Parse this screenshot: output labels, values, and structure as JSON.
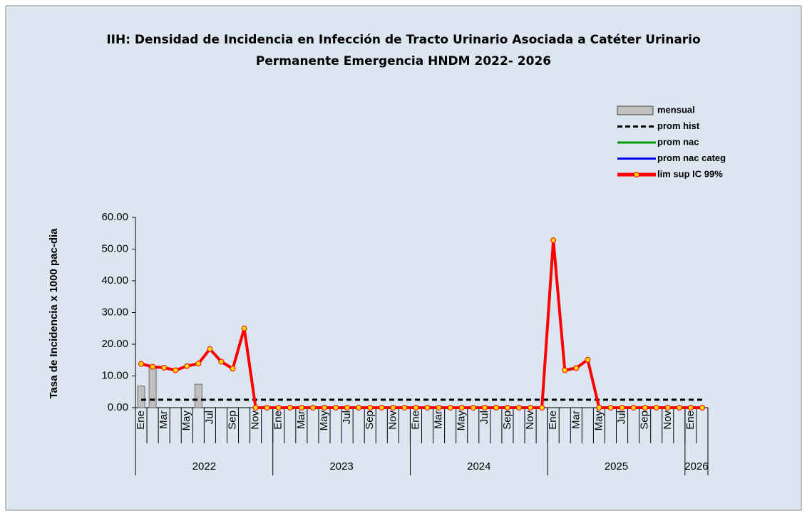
{
  "chart_data": {
    "type": "bar-line",
    "title": [
      "IIH: Densidad de Incidencia en  Infección de Tracto Urinario Asociada a Catéter Urinario",
      "Permanente Emergencia HNDM 2022- 2026"
    ],
    "y_label": "Tasa de Incidencia x 1000 pac-dia",
    "categories": [
      "Ene",
      null,
      "Mar",
      null,
      "May",
      null,
      "Jul",
      null,
      "Sep",
      null,
      "Nov",
      null,
      "Ene",
      null,
      "Mar",
      null,
      "May",
      null,
      "Jul",
      null,
      "Sep",
      null,
      "Nov",
      null,
      "Ene",
      null,
      "Mar",
      null,
      "May",
      null,
      "Jul",
      null,
      "Sep",
      null,
      "Nov",
      null,
      "Ene",
      null,
      "Mar",
      null,
      "May",
      null,
      "Jul",
      null,
      "Sep",
      null,
      "Nov",
      null,
      "Ene",
      null
    ],
    "years": [
      "2022",
      "2023",
      "2024",
      "2025",
      "2026"
    ],
    "ylim": [
      0,
      60
    ],
    "yticks": [
      {
        "value": 0,
        "label": "0.00"
      },
      {
        "value": 10,
        "label": "10.00"
      },
      {
        "value": 20,
        "label": "20.00"
      },
      {
        "value": 30,
        "label": "30.00"
      },
      {
        "value": 40,
        "label": "40.00"
      },
      {
        "value": 50,
        "label": "50.00"
      },
      {
        "value": 60,
        "label": "60.00"
      }
    ],
    "series": [
      {
        "name": "mensual",
        "kind": "bar",
        "color": "#c0c0c0",
        "values": [
          6.8,
          12.8,
          0,
          0,
          0,
          7.4,
          0,
          0,
          0,
          0,
          0,
          0,
          0,
          0,
          0,
          0,
          0,
          0,
          0,
          0,
          0,
          0,
          0,
          0,
          0,
          0,
          0,
          0,
          0,
          0,
          0,
          0,
          0,
          0,
          0,
          0,
          0,
          0,
          0,
          0,
          0,
          0,
          0,
          0,
          0,
          0,
          0,
          0,
          0,
          0
        ]
      },
      {
        "name": "prom hist",
        "kind": "line",
        "dashed": true,
        "color": "#000000",
        "values": [
          2.5,
          2.5,
          2.5,
          2.5,
          2.5,
          2.5,
          2.5,
          2.5,
          2.5,
          2.5,
          2.5,
          2.5,
          2.5,
          2.5,
          2.5,
          2.5,
          2.5,
          2.5,
          2.5,
          2.5,
          2.5,
          2.5,
          2.5,
          2.5,
          2.5,
          2.5,
          2.5,
          2.5,
          2.5,
          2.5,
          2.5,
          2.5,
          2.5,
          2.5,
          2.5,
          2.5,
          2.5,
          2.5,
          2.5,
          2.5,
          2.5,
          2.5,
          2.5,
          2.5,
          2.5,
          2.5,
          2.5,
          2.5,
          2.5,
          2.5
        ]
      },
      {
        "name": "prom nac",
        "kind": "line",
        "color": "#009900",
        "values": [
          null,
          null,
          null,
          null,
          null,
          null,
          null,
          null,
          null,
          null,
          null,
          null,
          null,
          null,
          null,
          null,
          null,
          null,
          null,
          null,
          null,
          null,
          null,
          null,
          null,
          null,
          null,
          null,
          null,
          null,
          null,
          null,
          null,
          null,
          null,
          null,
          null,
          null,
          null,
          null,
          null,
          null,
          null,
          null,
          null,
          null,
          null,
          null,
          null,
          null
        ]
      },
      {
        "name": "prom nac categ",
        "kind": "line",
        "color": "#0000ff",
        "values": [
          null,
          null,
          null,
          null,
          null,
          null,
          null,
          null,
          null,
          null,
          null,
          null,
          null,
          null,
          null,
          null,
          null,
          null,
          null,
          null,
          null,
          null,
          null,
          null,
          null,
          null,
          null,
          null,
          null,
          null,
          null,
          null,
          null,
          null,
          null,
          null,
          null,
          null,
          null,
          null,
          null,
          null,
          null,
          null,
          null,
          null,
          null,
          null,
          null,
          null
        ]
      },
      {
        "name": "lim sup IC 99%",
        "kind": "line",
        "color": "#ff0000",
        "marker_color": "#ffd700",
        "values": [
          13.8,
          12.9,
          12.6,
          11.8,
          13.1,
          13.9,
          18.5,
          14.5,
          12.3,
          25.0,
          0,
          0,
          0,
          0,
          0,
          0,
          0,
          0,
          0,
          0,
          0,
          0,
          0,
          0,
          0,
          0,
          0,
          0,
          0,
          0,
          0,
          0,
          0,
          0,
          0,
          0,
          52.8,
          11.8,
          12.5,
          15.1,
          0,
          0,
          0,
          0,
          0,
          0,
          0,
          0,
          0,
          0
        ]
      }
    ]
  }
}
